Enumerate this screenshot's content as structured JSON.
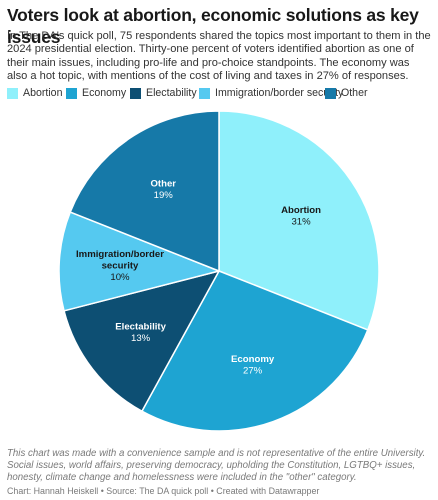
{
  "header": {
    "title": "Voters look at abortion, economic solutions as key issues",
    "description": "In The DA's quick poll, 75 respondents shared the topics most important to them in the 2024 presidential election. Thirty-one percent of voters identified abortion as one of their main issues, including pro-life and pro-choice standpoints. The economy was also a hot topic, with mentions of the cost of living and taxes in 27% of responses."
  },
  "legend": [
    {
      "label": "Abortion",
      "color": "#8ff0fb"
    },
    {
      "label": "Economy",
      "color": "#1ea4d2"
    },
    {
      "label": "Electability",
      "color": "#0d4f73"
    },
    {
      "label": "Immigration/border security",
      "color": "#55c9f0"
    },
    {
      "label": "Other",
      "color": "#1679a8"
    }
  ],
  "chart_data": {
    "type": "pie",
    "unit": "%",
    "slices": [
      {
        "label": "Abortion",
        "value": 31,
        "display": "31%",
        "color": "#8ff0fb"
      },
      {
        "label": "Economy",
        "value": 27,
        "display": "27%",
        "color": "#1ea4d2"
      },
      {
        "label": "Electability",
        "value": 13,
        "display": "13%",
        "color": "#0d4f73"
      },
      {
        "label": "Immigration/border security",
        "value": 10,
        "display": "10%",
        "color": "#55c9f0"
      },
      {
        "label": "Other",
        "value": 19,
        "display": "19%",
        "color": "#1679a8"
      }
    ]
  },
  "notes": "This chart was made with a convenience sample and is not representative of the entire University. Social issues, world affairs, preserving democracy, upholding the Constitution, LGTBQ+ issues, honesty, climate change and homelessness were included in the \"other\" category.",
  "footer": "Chart: Hannah Heiskell • Source: The DA quick poll • Created with Datawrapper"
}
